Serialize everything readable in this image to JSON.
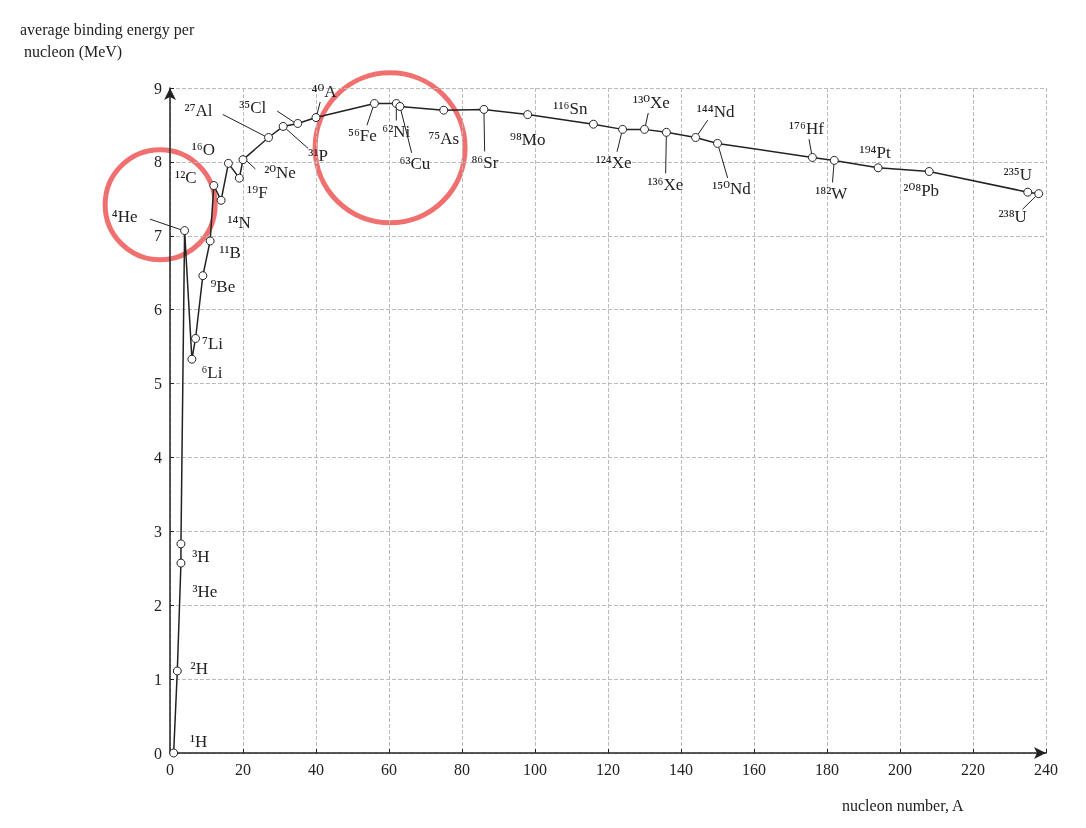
{
  "chart_data": {
    "type": "line",
    "xlabel": "nucleon number, A",
    "ylabel": "average binding energy per nucleon (MeV)",
    "x": [
      1,
      2,
      3,
      3,
      4,
      6,
      7,
      9,
      11,
      12,
      14,
      16,
      19,
      20,
      27,
      31,
      35,
      40,
      56,
      62,
      63,
      75,
      86,
      98,
      116,
      124,
      130,
      136,
      144,
      150,
      176,
      182,
      194,
      208,
      235,
      238
    ],
    "series": [
      {
        "color": "#222222",
        "values": [
          0,
          1.11,
          2.57,
          2.83,
          7.07,
          5.33,
          5.61,
          6.46,
          6.93,
          7.68,
          7.48,
          7.98,
          7.78,
          8.03,
          8.33,
          8.48,
          8.52,
          8.6,
          8.79,
          8.79,
          8.75,
          8.7,
          8.71,
          8.64,
          8.51,
          8.44,
          8.44,
          8.4,
          8.33,
          8.25,
          8.06,
          8.02,
          7.92,
          7.87,
          7.59,
          7.57
        ]
      }
    ],
    "xlim": [
      0,
      240
    ],
    "xticks": [
      0,
      20,
      40,
      60,
      80,
      100,
      120,
      140,
      160,
      180,
      200,
      220,
      240
    ],
    "ylim": [
      0,
      9
    ],
    "yticks": [
      0,
      1,
      2,
      3,
      4,
      5,
      6,
      7,
      8,
      9
    ],
    "grid": true,
    "marker": "circle",
    "line_style": "solid",
    "annotations": [
      {
        "text": "¹H",
        "x": 1,
        "y": 0
      },
      {
        "text": "²H",
        "x": 2,
        "y": 1.11
      },
      {
        "text": "³He",
        "x": 3,
        "y": 2.57
      },
      {
        "text": "³H",
        "x": 3,
        "y": 2.83
      },
      {
        "text": "⁴He",
        "x": 4,
        "y": 7.07
      },
      {
        "text": "⁶Li",
        "x": 6,
        "y": 5.33
      },
      {
        "text": "⁷Li",
        "x": 7,
        "y": 5.61
      },
      {
        "text": "⁹Be",
        "x": 9,
        "y": 6.46
      },
      {
        "text": "¹¹B",
        "x": 11,
        "y": 6.93
      },
      {
        "text": "¹²C",
        "x": 12,
        "y": 7.68
      },
      {
        "text": "¹⁴N",
        "x": 14,
        "y": 7.48
      },
      {
        "text": "¹⁶O",
        "x": 16,
        "y": 7.98
      },
      {
        "text": "¹⁹F",
        "x": 19,
        "y": 7.78
      },
      {
        "text": "²⁰Ne",
        "x": 20,
        "y": 8.03
      },
      {
        "text": "²⁷Al",
        "x": 27,
        "y": 8.33
      },
      {
        "text": "³¹P",
        "x": 31,
        "y": 8.48
      },
      {
        "text": "³⁵Cl",
        "x": 35,
        "y": 8.52
      },
      {
        "text": "⁴⁰A",
        "x": 40,
        "y": 8.6
      },
      {
        "text": "⁵⁶Fe",
        "x": 56,
        "y": 8.79
      },
      {
        "text": "⁶²Ni",
        "x": 62,
        "y": 8.79
      },
      {
        "text": "⁶³Cu",
        "x": 63,
        "y": 8.75
      },
      {
        "text": "⁷⁵As",
        "x": 75,
        "y": 8.7
      },
      {
        "text": "⁸⁶Sr",
        "x": 86,
        "y": 8.71
      },
      {
        "text": "⁹⁸Mo",
        "x": 98,
        "y": 8.64
      },
      {
        "text": "¹¹⁶Sn",
        "x": 116,
        "y": 8.51
      },
      {
        "text": "¹²⁴Xe",
        "x": 124,
        "y": 8.44
      },
      {
        "text": "¹³⁰Xe",
        "x": 130,
        "y": 8.44
      },
      {
        "text": "¹³⁶Xe",
        "x": 136,
        "y": 8.4
      },
      {
        "text": "¹⁴⁴Nd",
        "x": 144,
        "y": 8.33
      },
      {
        "text": "¹⁵⁰Nd",
        "x": 150,
        "y": 8.25
      },
      {
        "text": "¹⁷⁶Hf",
        "x": 176,
        "y": 8.06
      },
      {
        "text": "¹⁸²W",
        "x": 182,
        "y": 8.02
      },
      {
        "text": "¹⁹⁴Pt",
        "x": 194,
        "y": 7.92
      },
      {
        "text": "²⁰⁸Pb",
        "x": 208,
        "y": 7.87
      },
      {
        "text": "²³⁵U",
        "x": 235,
        "y": 7.59
      },
      {
        "text": "²³⁸U",
        "x": 238,
        "y": 7.57
      }
    ]
  }
}
